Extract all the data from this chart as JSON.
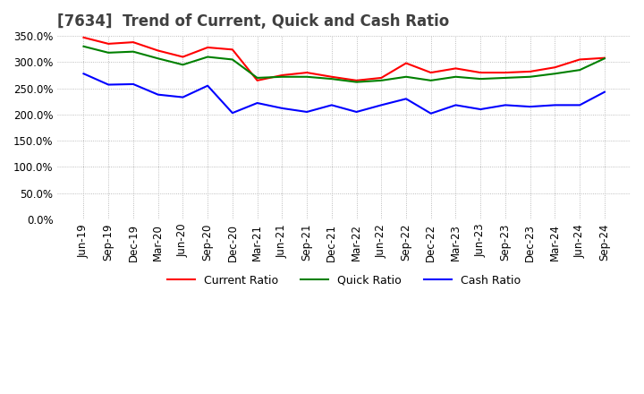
{
  "title": "[7634]  Trend of Current, Quick and Cash Ratio",
  "ylim": [
    0.0,
    3.5
  ],
  "yticks": [
    0.0,
    0.5,
    1.0,
    1.5,
    2.0,
    2.5,
    3.0,
    3.5
  ],
  "x_labels": [
    "Jun-19",
    "Sep-19",
    "Dec-19",
    "Mar-20",
    "Jun-20",
    "Sep-20",
    "Dec-20",
    "Mar-21",
    "Jun-21",
    "Sep-21",
    "Dec-21",
    "Mar-22",
    "Jun-22",
    "Sep-22",
    "Dec-22",
    "Mar-23",
    "Jun-23",
    "Sep-23",
    "Dec-23",
    "Mar-24",
    "Jun-24",
    "Sep-24"
  ],
  "current_ratio": [
    3.47,
    3.35,
    3.38,
    3.22,
    3.1,
    3.28,
    3.24,
    2.65,
    2.75,
    2.8,
    2.72,
    2.65,
    2.7,
    2.98,
    2.8,
    2.88,
    2.8,
    2.8,
    2.82,
    2.9,
    3.05,
    3.08
  ],
  "quick_ratio": [
    3.3,
    3.18,
    3.2,
    3.07,
    2.95,
    3.1,
    3.05,
    2.7,
    2.72,
    2.72,
    2.68,
    2.62,
    2.65,
    2.72,
    2.65,
    2.72,
    2.68,
    2.7,
    2.72,
    2.78,
    2.85,
    3.07
  ],
  "cash_ratio": [
    2.78,
    2.57,
    2.58,
    2.38,
    2.33,
    2.55,
    2.03,
    2.22,
    2.12,
    2.05,
    2.18,
    2.05,
    2.18,
    2.3,
    2.02,
    2.18,
    2.1,
    2.18,
    2.15,
    2.18,
    2.18,
    2.43
  ],
  "current_color": "#ff0000",
  "quick_color": "#008000",
  "cash_color": "#0000ff",
  "line_width": 1.5,
  "bg_color": "#ffffff",
  "plot_bg_color": "#ffffff",
  "grid_color": "#aaaaaa",
  "title_color": "#404040",
  "title_fontsize": 12,
  "tick_fontsize": 8.5,
  "legend_fontsize": 9
}
